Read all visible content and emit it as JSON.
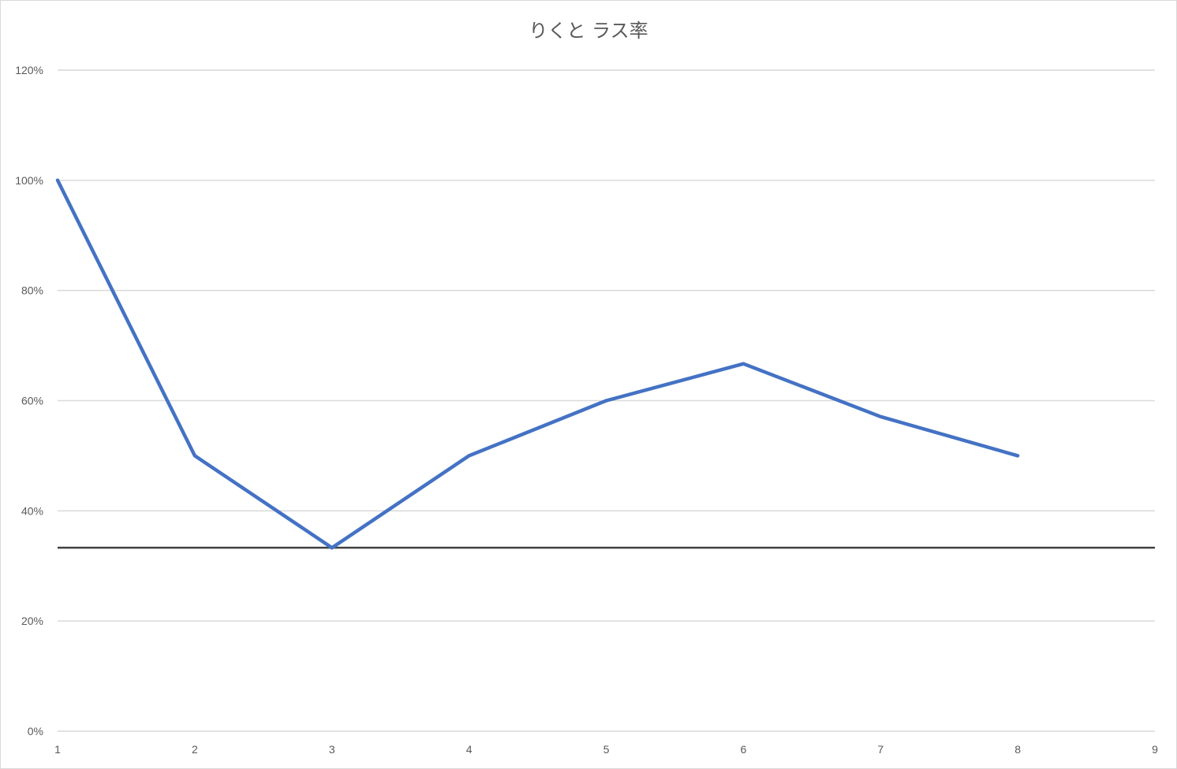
{
  "chart_data": {
    "type": "line",
    "title": "りくと ラス率",
    "xlabel": "",
    "ylabel": "",
    "xlim": [
      1,
      9
    ],
    "ylim": [
      0,
      1.2
    ],
    "x_ticks": [
      "1",
      "2",
      "3",
      "4",
      "5",
      "6",
      "7",
      "8",
      "9"
    ],
    "y_ticks": [
      "0%",
      "20%",
      "40%",
      "60%",
      "80%",
      "100%",
      "120%"
    ],
    "grid": true,
    "legend": "none",
    "series": [
      {
        "x": [
          1,
          2,
          3,
          4,
          5,
          6,
          7,
          8
        ],
        "y": [
          1.0,
          0.5,
          0.333,
          0.5,
          0.6,
          0.667,
          0.571,
          0.5
        ],
        "color": "#4472c4"
      }
    ],
    "reference_lines": [
      {
        "y": 0.333,
        "color": "#404040"
      }
    ]
  }
}
